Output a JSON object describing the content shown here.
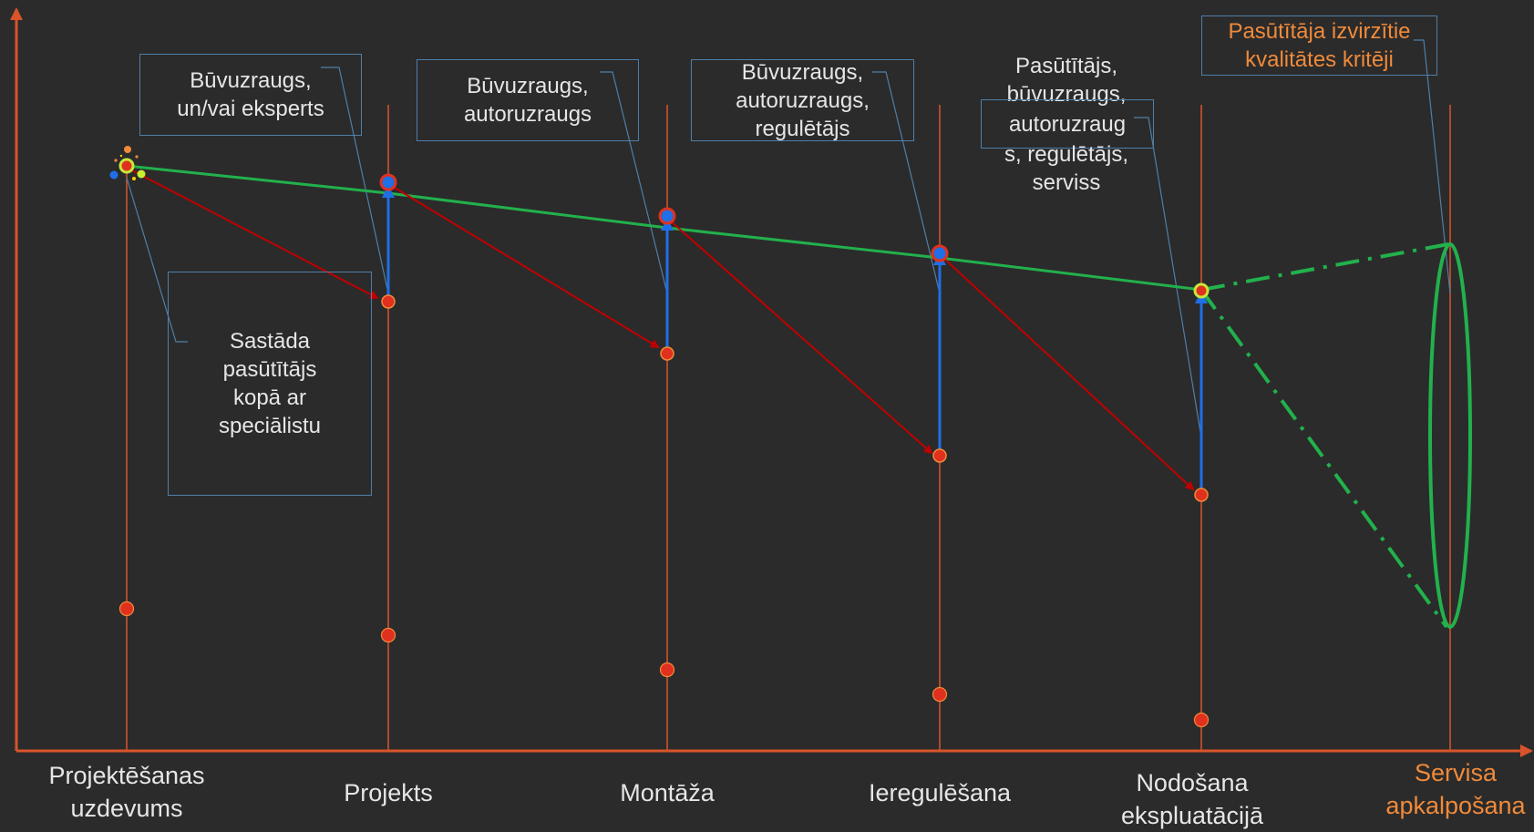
{
  "colors": {
    "background": "#2b2b2b",
    "axis": "#d9542b",
    "stage_line": "#d9542b",
    "green_line": "#22b14c",
    "red_arrow": "#c00000",
    "blue_arrow": "#1f6fe6",
    "callout_border": "#4f7fa8",
    "text": "#e6e6e6",
    "orange_text": "#f08a3a"
  },
  "stages": [
    {
      "label": "Projektēšanas\nuzdevums"
    },
    {
      "label": "Projekts"
    },
    {
      "label": "Montāža"
    },
    {
      "label": "Ieregulēšana"
    },
    {
      "label": "Nodošana\nekspluatācijā"
    },
    {
      "label": "Servisa\napkalpošana"
    }
  ],
  "callouts": {
    "c1": "Būvuzraugs,\nun/vai eksperts",
    "c2": "Būvuzraugs,\nautoruzraugs",
    "c3": "Būvuzraugs,\nautoruzraugs,\nregulētājs",
    "c4_above": "Pasūtītājs,\nbūvuzraugs,",
    "c4_box": "autoruzraug",
    "c4_below": "s, regulētājs,\nserviss",
    "c5": "Pasūtītāja izvirzītie\nkvalitātes kritēji",
    "c6": "Sastāda\npasūtītājs\nkopā ar\nspeciālistu"
  }
}
